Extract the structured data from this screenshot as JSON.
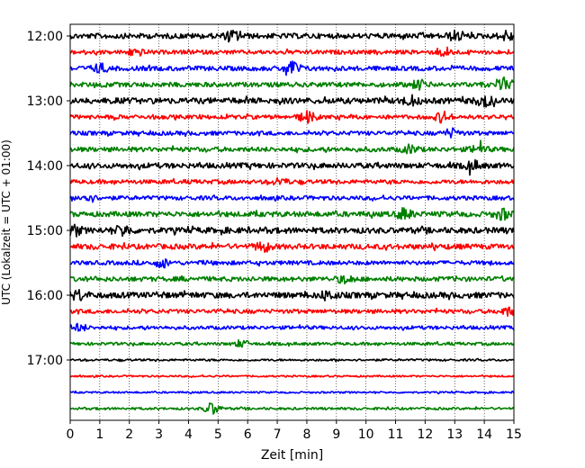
{
  "chart_data": {
    "type": "line",
    "title": "",
    "xlabel": "Zeit  [min]",
    "ylabel": "UTC (Lokalzeit = UTC + 01:00)",
    "xlim": [
      0,
      15
    ],
    "x_ticks": [
      "0",
      "1",
      "2",
      "3",
      "4",
      "5",
      "6",
      "7",
      "8",
      "9",
      "10",
      "11",
      "12",
      "13",
      "14",
      "15"
    ],
    "y_ticks": [
      "12:00",
      "13:00",
      "14:00",
      "15:00",
      "16:00",
      "17:00"
    ],
    "grid": "vertical-dotted",
    "legend": "none",
    "series_colors": [
      "#000000",
      "#ff0000",
      "#0000ff",
      "#008000"
    ],
    "traces": [
      {
        "start": "12:00",
        "color": "#000000",
        "amplitude": 0.9,
        "events": [
          {
            "at": 5.5,
            "amp": 1.4
          },
          {
            "at": 13.0,
            "amp": 1.2
          },
          {
            "at": 14.8,
            "amp": 1.4
          }
        ]
      },
      {
        "start": "12:15",
        "color": "#ff0000",
        "amplitude": 0.7,
        "events": [
          {
            "at": 2.2,
            "amp": 1.2
          },
          {
            "at": 12.7,
            "amp": 1.3
          }
        ]
      },
      {
        "start": "12:30",
        "color": "#0000ff",
        "amplitude": 0.8,
        "events": [
          {
            "at": 7.5,
            "amp": 2.4
          },
          {
            "at": 1.0,
            "amp": 1.3
          }
        ]
      },
      {
        "start": "12:45",
        "color": "#008000",
        "amplitude": 0.8,
        "events": [
          {
            "at": 11.8,
            "amp": 1.4
          },
          {
            "at": 14.7,
            "amp": 1.6
          }
        ]
      },
      {
        "start": "13:00",
        "color": "#000000",
        "amplitude": 1.0,
        "events": [
          {
            "at": 14.0,
            "amp": 1.6
          },
          {
            "at": 11.5,
            "amp": 1.3
          }
        ]
      },
      {
        "start": "13:15",
        "color": "#ff0000",
        "amplitude": 0.7,
        "events": [
          {
            "at": 8.0,
            "amp": 1.8
          },
          {
            "at": 12.6,
            "amp": 1.6
          }
        ]
      },
      {
        "start": "13:30",
        "color": "#0000ff",
        "amplitude": 0.7,
        "events": [
          {
            "at": 12.9,
            "amp": 1.3
          }
        ]
      },
      {
        "start": "13:45",
        "color": "#008000",
        "amplitude": 0.8,
        "events": [
          {
            "at": 13.8,
            "amp": 1.3
          },
          {
            "at": 11.5,
            "amp": 1.2
          }
        ]
      },
      {
        "start": "14:00",
        "color": "#000000",
        "amplitude": 0.9,
        "events": [
          {
            "at": 13.6,
            "amp": 1.4
          }
        ]
      },
      {
        "start": "14:15",
        "color": "#ff0000",
        "amplitude": 0.7,
        "events": [
          {
            "at": 7.1,
            "amp": 1.1
          }
        ]
      },
      {
        "start": "14:30",
        "color": "#0000ff",
        "amplitude": 0.7,
        "events": [
          {
            "at": 0.6,
            "amp": 1.2
          }
        ]
      },
      {
        "start": "14:45",
        "color": "#008000",
        "amplitude": 0.9,
        "events": [
          {
            "at": 11.3,
            "amp": 1.5
          },
          {
            "at": 14.6,
            "amp": 1.6
          }
        ]
      },
      {
        "start": "15:00",
        "color": "#000000",
        "amplitude": 1.0,
        "events": [
          {
            "at": 0.1,
            "amp": 1.6
          },
          {
            "at": 1.8,
            "amp": 1.6
          }
        ]
      },
      {
        "start": "15:15",
        "color": "#ff0000",
        "amplitude": 0.9,
        "events": [
          {
            "at": 6.5,
            "amp": 1.3
          }
        ]
      },
      {
        "start": "15:30",
        "color": "#0000ff",
        "amplitude": 0.7,
        "events": [
          {
            "at": 3.1,
            "amp": 1.2
          }
        ]
      },
      {
        "start": "15:45",
        "color": "#008000",
        "amplitude": 0.8,
        "events": [
          {
            "at": 9.3,
            "amp": 1.2
          }
        ]
      },
      {
        "start": "16:00",
        "color": "#000000",
        "amplitude": 1.0,
        "events": [
          {
            "at": 0.3,
            "amp": 1.4
          },
          {
            "at": 8.7,
            "amp": 1.3
          }
        ]
      },
      {
        "start": "16:15",
        "color": "#ff0000",
        "amplitude": 0.7,
        "events": [
          {
            "at": 14.8,
            "amp": 1.3
          }
        ]
      },
      {
        "start": "16:30",
        "color": "#0000ff",
        "amplitude": 0.6,
        "events": [
          {
            "at": 0.3,
            "amp": 1.1
          }
        ]
      },
      {
        "start": "16:45",
        "color": "#008000",
        "amplitude": 0.5,
        "events": [
          {
            "at": 5.8,
            "amp": 1.1
          }
        ]
      },
      {
        "start": "17:00",
        "color": "#000000",
        "amplitude": 0.35,
        "events": []
      },
      {
        "start": "17:15",
        "color": "#ff0000",
        "amplitude": 0.3,
        "events": []
      },
      {
        "start": "17:30",
        "color": "#0000ff",
        "amplitude": 0.3,
        "events": []
      },
      {
        "start": "17:45",
        "color": "#008000",
        "amplitude": 0.4,
        "events": [
          {
            "at": 4.8,
            "amp": 2.0
          }
        ]
      }
    ]
  }
}
